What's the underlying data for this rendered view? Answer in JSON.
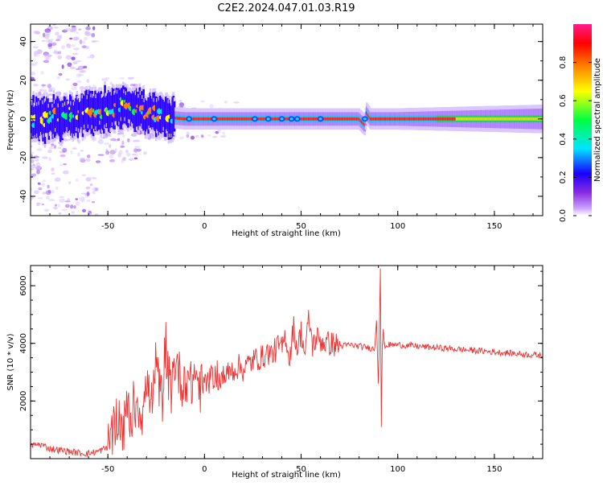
{
  "title": "C2E2.2024.047.01.03.R19",
  "colors": {
    "snr_line": "#ee3333",
    "signal_ridge": "#ff2020",
    "colormap": [
      "#ffffff",
      "#c8a0ff",
      "#8a2be2",
      "#1a00ff",
      "#00e5ff",
      "#00ff40",
      "#ffff00",
      "#ff8000",
      "#ff0000",
      "#ff1a8c"
    ]
  },
  "chart_data": [
    {
      "type": "heatmap",
      "title": "C2E2.2024.047.01.03.R19",
      "xlabel": "Height of straight line (km)",
      "ylabel": "Frequency (Hz)",
      "xlim": [
        -90,
        175
      ],
      "ylim": [
        -50,
        49
      ],
      "x_ticks": [
        -50,
        0,
        50,
        100,
        150
      ],
      "y_ticks": [
        -40,
        -20,
        0,
        20,
        40
      ],
      "x_tick_labels": [
        "-50",
        "0",
        "50",
        "100",
        "150"
      ],
      "y_tick_labels": [
        "-40",
        "-20",
        "0",
        "20",
        "40"
      ],
      "grid": false,
      "colorbar": {
        "label": "Normalized spectral amplitude",
        "range": [
          0,
          1
        ],
        "ticks": [
          0.0,
          0.2,
          0.4,
          0.6,
          0.8
        ],
        "tick_labels": [
          "0.0",
          "0.2",
          "0.4",
          "0.6",
          "0.8"
        ]
      },
      "ridge": {
        "description_free_values": true,
        "x": [
          -90,
          -80,
          -70,
          -60,
          -50,
          -40,
          -30,
          -20,
          -10,
          0,
          25,
          50,
          80,
          83,
          84,
          86,
          100,
          150,
          175
        ],
        "frequency": [
          0,
          0,
          1,
          3,
          5,
          7,
          3,
          1,
          0,
          0,
          0,
          0,
          0,
          -3,
          3,
          0,
          0,
          0,
          0
        ]
      }
    },
    {
      "type": "line",
      "xlabel": "Height of straight line (km)",
      "ylabel": "SNR (10 * v/v)",
      "xlim": [
        -90,
        175
      ],
      "ylim": [
        0,
        6700
      ],
      "x_ticks": [
        -50,
        0,
        50,
        100,
        150
      ],
      "y_ticks": [
        2000,
        4000,
        6000
      ],
      "x_tick_labels": [
        "-50",
        "0",
        "50",
        "100",
        "150"
      ],
      "y_tick_labels": [
        "2000",
        "4000",
        "6000"
      ],
      "grid": false,
      "series": [
        {
          "x": [
            -90,
            -85,
            -80,
            -75,
            -70,
            -65,
            -60,
            -55,
            -50,
            -47,
            -45,
            -42,
            -40,
            -37,
            -35,
            -32,
            -30,
            -27,
            -25,
            -22,
            -20,
            -17,
            -15,
            -12,
            -10,
            -7,
            -5,
            -2,
            0,
            3,
            5,
            8,
            10,
            13,
            15,
            18,
            20,
            23,
            25,
            28,
            30,
            33,
            35,
            38,
            40,
            42,
            44,
            46,
            48,
            50,
            52,
            54,
            56,
            58,
            60,
            63,
            65,
            68,
            70,
            75,
            80,
            85,
            88,
            89,
            90,
            91,
            91.5,
            92,
            92.5,
            93,
            94,
            95,
            100,
            110,
            120,
            130,
            140,
            150,
            160,
            170,
            175
          ],
          "y": [
            450,
            500,
            350,
            300,
            250,
            200,
            180,
            250,
            400,
            900,
            1600,
            900,
            1800,
            1200,
            2100,
            1500,
            2600,
            1800,
            3100,
            2000,
            3300,
            2300,
            3500,
            2600,
            2900,
            2500,
            3000,
            2400,
            2600,
            2700,
            2900,
            2700,
            2800,
            3000,
            3100,
            3200,
            3100,
            3300,
            3400,
            3500,
            3500,
            3700,
            3600,
            3900,
            3800,
            4300,
            3400,
            4600,
            3800,
            4400,
            3600,
            4900,
            3900,
            4200,
            4100,
            4000,
            4000,
            3950,
            3900,
            3950,
            3900,
            3850,
            3800,
            4800,
            2600,
            6600,
            1100,
            3900,
            4500,
            3950,
            3900,
            3950,
            3950,
            3900,
            3850,
            3800,
            3750,
            3700,
            3650,
            3600,
            3580
          ]
        }
      ]
    }
  ]
}
